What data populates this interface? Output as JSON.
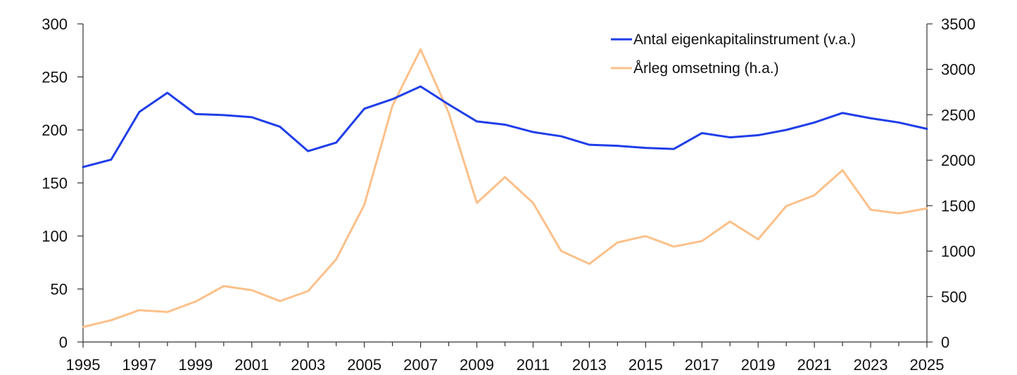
{
  "chart_data": {
    "type": "line",
    "x": [
      1995,
      1996,
      1997,
      1998,
      1999,
      2000,
      2001,
      2002,
      2003,
      2004,
      2005,
      2006,
      2007,
      2008,
      2009,
      2010,
      2011,
      2012,
      2013,
      2014,
      2015,
      2016,
      2017,
      2018,
      2019,
      2020,
      2021,
      2022,
      2023,
      2024,
      2025
    ],
    "xticks": [
      1995,
      1997,
      1999,
      2001,
      2003,
      2005,
      2007,
      2009,
      2011,
      2013,
      2015,
      2017,
      2019,
      2021,
      2023,
      2025
    ],
    "xlim": [
      1995,
      2025
    ],
    "y_left": {
      "ylim": [
        0,
        300
      ],
      "ticks": [
        0,
        50,
        100,
        150,
        200,
        250,
        300
      ]
    },
    "y_right": {
      "ylim": [
        0,
        3500
      ],
      "ticks": [
        0,
        500,
        1000,
        1500,
        2000,
        2500,
        3000,
        3500
      ]
    },
    "series": [
      {
        "name": "Antal eigenkapitalinstrument (v.a.)",
        "axis": "left",
        "color": "#1f3ee8",
        "values": [
          165,
          172,
          217,
          235,
          215,
          214,
          212,
          203,
          180,
          188,
          220,
          229,
          241,
          224,
          208,
          205,
          198,
          194,
          186,
          185,
          183,
          182,
          197,
          193,
          195,
          200,
          207,
          216,
          211,
          207,
          201
        ]
      },
      {
        "name": "Årleg omsetning (h.a.)",
        "axis": "right",
        "color": "#fcc08a",
        "values": [
          165,
          240,
          350,
          330,
          445,
          615,
          570,
          450,
          560,
          910,
          1510,
          2600,
          3220,
          2520,
          1530,
          1815,
          1530,
          1000,
          860,
          1095,
          1165,
          1050,
          1110,
          1325,
          1130,
          1495,
          1615,
          1890,
          1455,
          1415,
          1470
        ]
      }
    ],
    "legend_position": "top-right",
    "grid": false
  }
}
